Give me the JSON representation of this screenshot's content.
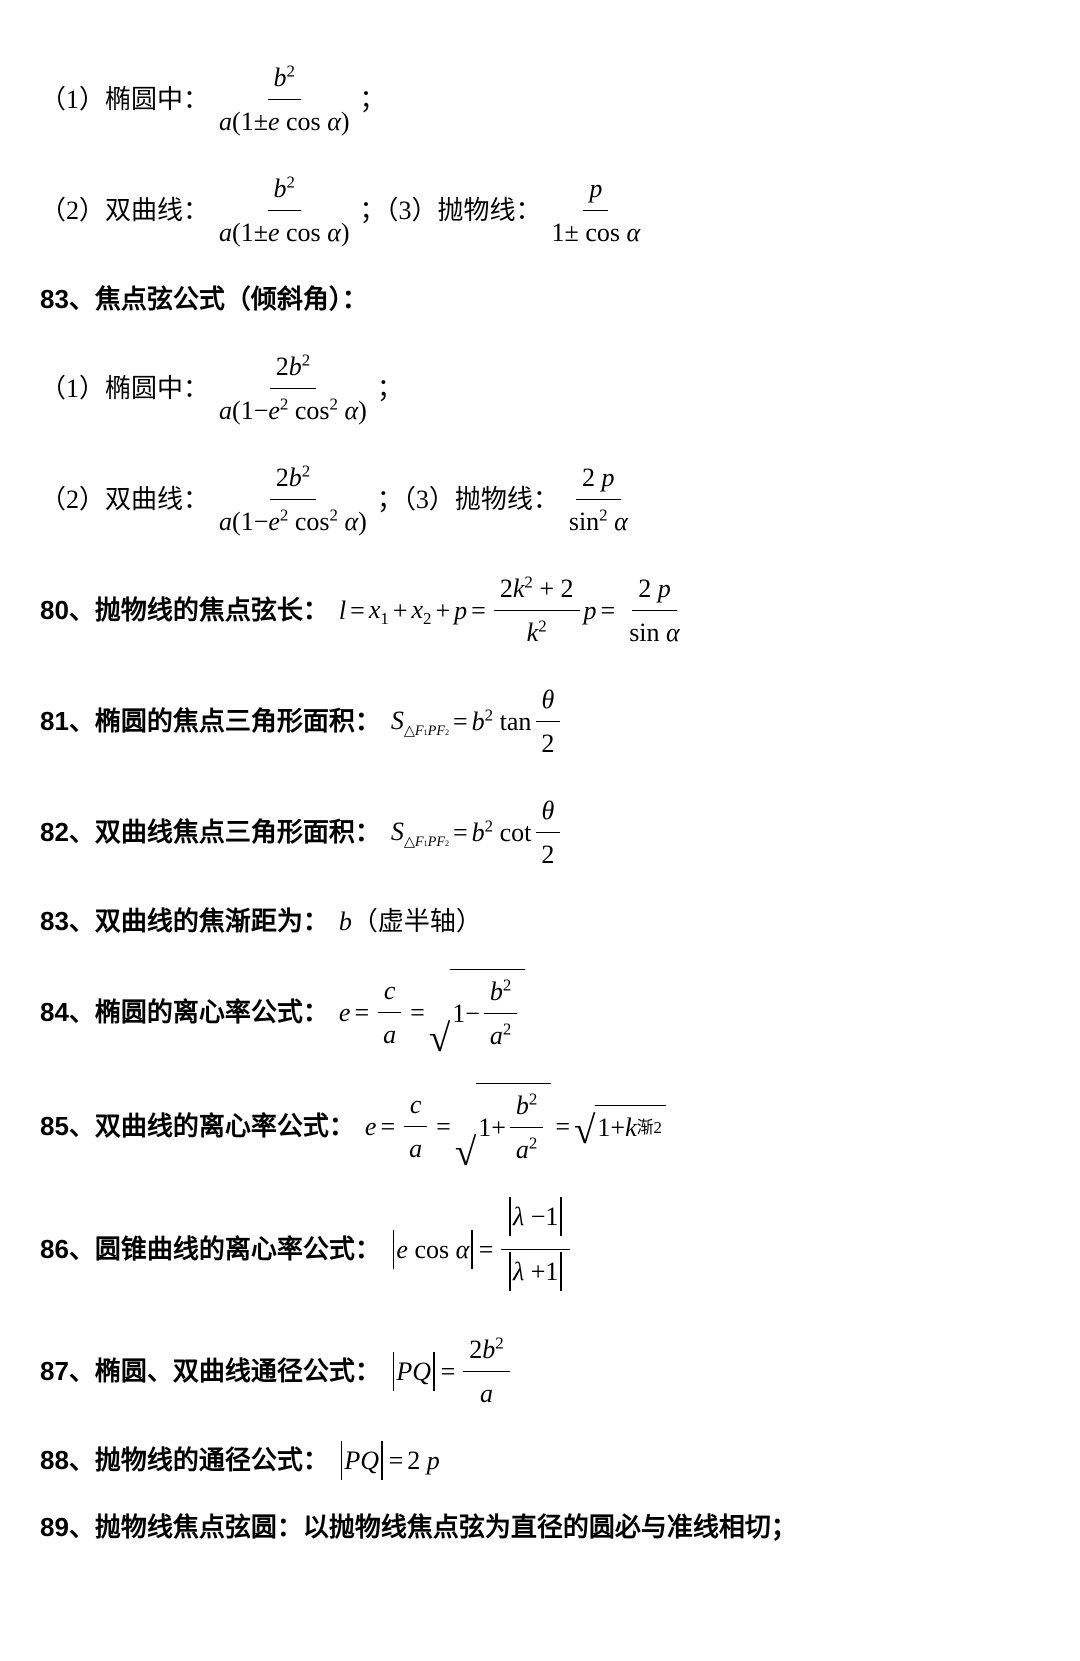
{
  "lines": {
    "l1_label": "（1）椭圆中：",
    "l1_sep": "；",
    "l2_label": "（2）双曲线：",
    "l2_mid": "；（3）抛物线：",
    "h83a": "83、焦点弦公式（倾斜角）：",
    "l3_label": "（1）椭圆中：",
    "l4_label": "（2）双曲线：",
    "l4_mid": "；（3）抛物线：",
    "h80": "80、抛物线的焦点弦长：",
    "h81": "81、椭圆的焦点三角形面积：",
    "h82": "82、双曲线焦点三角形面积：",
    "h83b": "83、双曲线的焦渐距为：",
    "h83b_tail": "（虚半轴）",
    "h84": "84、椭圆的离心率公式：",
    "h85": "85、双曲线的离心率公式：",
    "h86": "86、圆锥曲线的离心率公式：",
    "h87": "87、椭圆、双曲线通径公式：",
    "h88": "88、抛物线的通径公式：",
    "h89": "89、抛物线焦点弦圆：以抛物线焦点弦为直径的圆必与准线相切；"
  },
  "sym": {
    "b": "b",
    "a": "a",
    "e": "e",
    "p": "p",
    "l": "l",
    "x": "x",
    "k": "k",
    "S": "S",
    "theta": "θ",
    "alpha": "α",
    "lambda": "λ",
    "c": "c",
    "PQ": "PQ",
    "plus": "+",
    "minus": "−",
    "pm": "±",
    "one": "1",
    "two": "2",
    "cos": "cos",
    "sin": "sin",
    "tan": "tan",
    "cot": "cot",
    "tri": "△",
    "F1": "F",
    "F2": "F",
    "P": "P",
    "jian": "渐",
    "eq": "="
  }
}
